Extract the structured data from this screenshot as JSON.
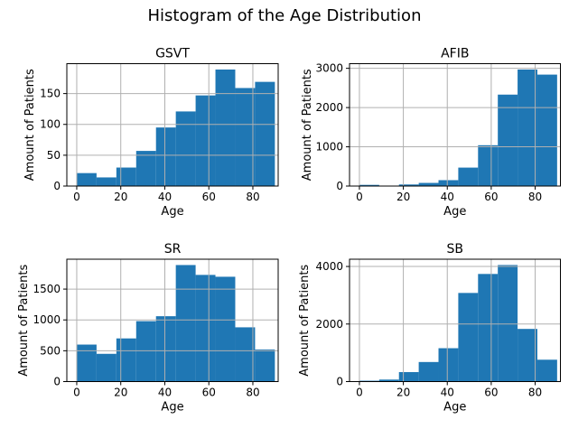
{
  "figure": {
    "title": "Histogram of the Age Distribution",
    "background_color": "#ffffff",
    "bar_color": "#1f77b4",
    "grid_color": "#b0b0b0",
    "spine_color": "#000000",
    "text_color": "#000000"
  },
  "chart_data": [
    {
      "type": "bar",
      "title": "GSVT",
      "xlabel": "Age",
      "ylabel": "Amount of Patients",
      "bin_edges": [
        0,
        9,
        18,
        27,
        36,
        45,
        54,
        63,
        72,
        81,
        90
      ],
      "values": [
        21,
        14,
        30,
        57,
        95,
        121,
        147,
        189,
        159,
        169
      ],
      "xticks": [
        0,
        20,
        40,
        60,
        80
      ],
      "yticks": [
        0,
        50,
        100,
        150
      ],
      "xlim": [
        -4.5,
        91.5
      ],
      "ylim": [
        0,
        198.5
      ],
      "grid": true,
      "legend": false
    },
    {
      "type": "bar",
      "title": "AFIB",
      "xlabel": "Age",
      "ylabel": "Amount of Patients",
      "bin_edges": [
        0,
        9,
        18,
        27,
        36,
        45,
        54,
        63,
        72,
        81,
        90
      ],
      "values": [
        30,
        8,
        40,
        80,
        150,
        470,
        1040,
        2330,
        2970,
        2840
      ],
      "xticks": [
        0,
        20,
        40,
        60,
        80
      ],
      "yticks": [
        0,
        1000,
        2000,
        3000
      ],
      "xlim": [
        -4.5,
        91.5
      ],
      "ylim": [
        0,
        3118.5
      ],
      "grid": true,
      "legend": false
    },
    {
      "type": "bar",
      "title": "SR",
      "xlabel": "Age",
      "ylabel": "Amount of Patients",
      "bin_edges": [
        0,
        9,
        18,
        27,
        36,
        45,
        54,
        63,
        72,
        81,
        90
      ],
      "values": [
        600,
        450,
        700,
        980,
        1060,
        1890,
        1730,
        1700,
        880,
        520
      ],
      "xticks": [
        0,
        20,
        40,
        60,
        80
      ],
      "yticks": [
        0,
        500,
        1000,
        1500
      ],
      "xlim": [
        -4.5,
        91.5
      ],
      "ylim": [
        0,
        1984.5
      ],
      "grid": true,
      "legend": false
    },
    {
      "type": "bar",
      "title": "SB",
      "xlabel": "Age",
      "ylabel": "Amount of Patients",
      "bin_edges": [
        0,
        9,
        18,
        27,
        36,
        45,
        54,
        63,
        72,
        81,
        90
      ],
      "values": [
        30,
        70,
        330,
        680,
        1160,
        3080,
        3740,
        4050,
        1830,
        760
      ],
      "xticks": [
        0,
        20,
        40,
        60,
        80
      ],
      "yticks": [
        0,
        2000,
        4000
      ],
      "xlim": [
        -4.5,
        91.5
      ],
      "ylim": [
        0,
        4252.5
      ],
      "grid": true,
      "legend": false
    }
  ]
}
